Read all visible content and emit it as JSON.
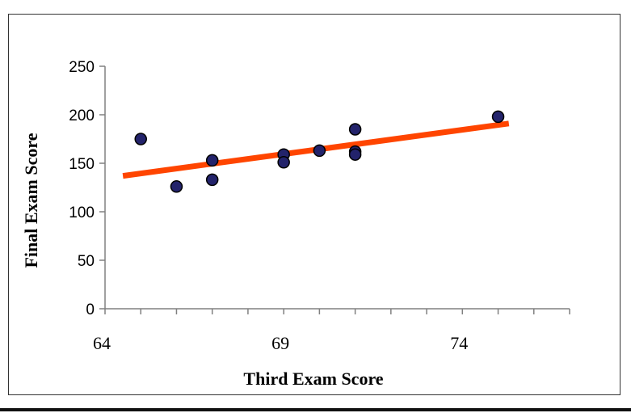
{
  "chart_data": {
    "type": "scatter",
    "title": "",
    "xlabel": "Third Exam Score",
    "ylabel": "Final Exam Score",
    "xlim": [
      64,
      77
    ],
    "ylim": [
      0,
      250
    ],
    "x_tick_labels": [
      "64",
      "69",
      "74"
    ],
    "x_tick_values": [
      64,
      69,
      74
    ],
    "x_minor_ticks": [
      64,
      65,
      66,
      67,
      68,
      69,
      70,
      71,
      72,
      73,
      74,
      75,
      76,
      77
    ],
    "y_ticks": [
      0,
      50,
      100,
      150,
      200,
      250
    ],
    "y_tick_labels": [
      "0",
      "50",
      "100",
      "150",
      "200",
      "250"
    ],
    "grid": false,
    "legend": "none",
    "points": [
      {
        "x": 65,
        "y": 175
      },
      {
        "x": 66,
        "y": 126
      },
      {
        "x": 67,
        "y": 153
      },
      {
        "x": 67,
        "y": 133
      },
      {
        "x": 69,
        "y": 159
      },
      {
        "x": 69,
        "y": 151
      },
      {
        "x": 70,
        "y": 163
      },
      {
        "x": 71,
        "y": 185
      },
      {
        "x": 71,
        "y": 162
      },
      {
        "x": 71,
        "y": 159
      },
      {
        "x": 75,
        "y": 198
      }
    ],
    "trendline": {
      "x": [
        64.5,
        75.3
      ],
      "y": [
        137,
        191
      ]
    },
    "colors": {
      "point_fill": "#23236b",
      "point_stroke": "#000000",
      "trendline": "#ff4500",
      "axis": "#808080"
    }
  }
}
